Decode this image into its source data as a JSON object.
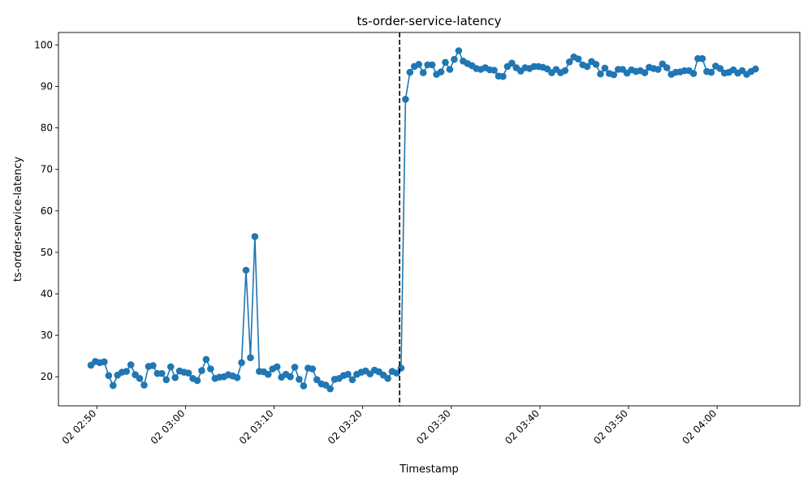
{
  "chart_data": {
    "type": "line",
    "title": "ts-order-service-latency",
    "xlabel": "Timestamp",
    "ylabel": "ts-order-service-latency",
    "xlim": [
      "02:45:40",
      "04:09:20"
    ],
    "ylim": [
      13,
      103
    ],
    "grid": false,
    "x_ticks": [
      {
        "t": "02:50",
        "label": "02 02:50"
      },
      {
        "t": "03:00",
        "label": "02 03:00"
      },
      {
        "t": "03:10",
        "label": "02 03:10"
      },
      {
        "t": "03:20",
        "label": "02 03:20"
      },
      {
        "t": "03:30",
        "label": "02 03:30"
      },
      {
        "t": "03:40",
        "label": "02 03:40"
      },
      {
        "t": "03:50",
        "label": "02 03:50"
      },
      {
        "t": "04:00",
        "label": "02 04:00"
      }
    ],
    "y_ticks": [
      20,
      30,
      40,
      50,
      60,
      70,
      80,
      90,
      100
    ],
    "vline_at": "03:24:10",
    "series": [
      {
        "color": "#1f77b4",
        "start": "02:49:20",
        "step_seconds": 30,
        "values": [
          22.8,
          23.7,
          23.4,
          23.6,
          20.3,
          17.9,
          20.4,
          21.1,
          21.3,
          22.9,
          20.5,
          19.6,
          18.0,
          22.5,
          22.7,
          20.8,
          20.8,
          19.3,
          22.4,
          19.8,
          21.4,
          21.1,
          20.9,
          19.6,
          19.1,
          21.5,
          24.2,
          21.9,
          19.6,
          19.9,
          20.0,
          20.5,
          20.2,
          19.8,
          23.4,
          45.7,
          24.6,
          53.8,
          21.3,
          21.2,
          20.6,
          21.9,
          22.4,
          19.9,
          20.6,
          20.0,
          22.3,
          19.4,
          17.8,
          22.1,
          21.9,
          19.3,
          18.3,
          18.0,
          17.1,
          19.4,
          19.6,
          20.3,
          20.6,
          19.3,
          20.6,
          21.1,
          21.4,
          20.7,
          21.6,
          21.2,
          20.4,
          19.6,
          21.3,
          20.9,
          22.1,
          86.9,
          93.4,
          94.8,
          95.3,
          93.3,
          95.2,
          95.2,
          92.9,
          93.5,
          95.8,
          94.1,
          96.5,
          98.6,
          96.1,
          95.5,
          95.0,
          94.3,
          94.1,
          94.5,
          94.0,
          93.9,
          92.5,
          92.4,
          94.8,
          95.6,
          94.5,
          93.7,
          94.5,
          94.3,
          94.8,
          94.8,
          94.6,
          94.2,
          93.3,
          94.1,
          93.3,
          93.8,
          95.9,
          97.1,
          96.6,
          95.2,
          94.8,
          96.0,
          95.3,
          93.0,
          94.4,
          93.1,
          92.8,
          94.1,
          94.1,
          93.2,
          94.0,
          93.6,
          93.8,
          93.3,
          94.6,
          94.3,
          94.1,
          95.4,
          94.5,
          92.9,
          93.4,
          93.5,
          93.8,
          93.8,
          93.1,
          96.7,
          96.7,
          93.6,
          93.4,
          94.9,
          94.3,
          93.2,
          93.4,
          94.0,
          93.2,
          93.8,
          92.9,
          93.6,
          94.2
        ]
      }
    ]
  }
}
